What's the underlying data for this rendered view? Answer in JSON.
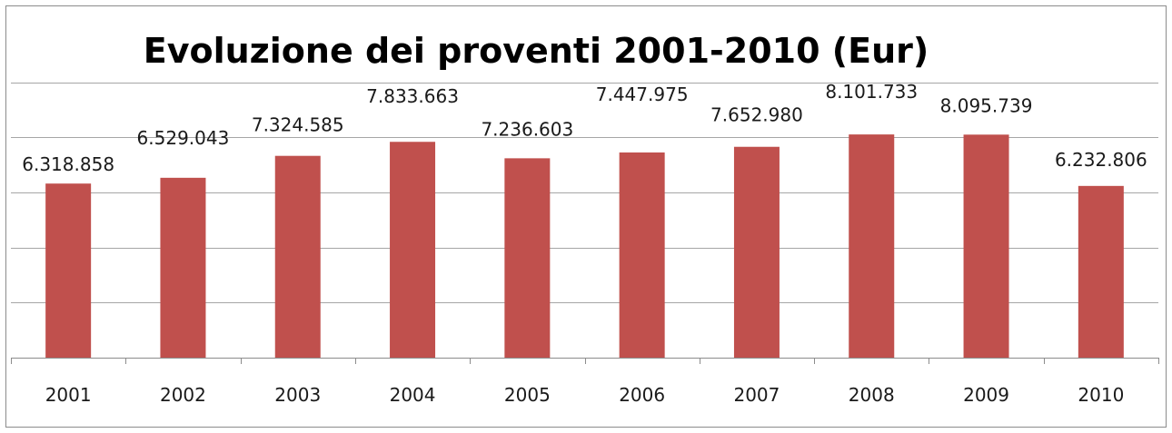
{
  "chart_data": {
    "type": "bar",
    "title": "Evoluzione dei proventi 2001-2010 (Eur)",
    "xlabel": "",
    "ylabel": "",
    "categories": [
      "2001",
      "2002",
      "2003",
      "2004",
      "2005",
      "2006",
      "2007",
      "2008",
      "2009",
      "2010"
    ],
    "values": [
      6318858,
      6529043,
      7324585,
      7833663,
      7236603,
      7447975,
      7652980,
      8101733,
      8095739,
      6232806
    ],
    "data_labels": [
      "6.318.858",
      "6.529.043",
      "7.324.585",
      "7.833.663",
      "7.236.603",
      "7.447.975",
      "7.652.980",
      "8.101.733",
      "8.095.739",
      "6.232.806"
    ],
    "ylim": [
      0,
      10000000
    ],
    "gridlines": [
      2000000,
      4000000,
      6000000,
      8000000,
      10000000
    ],
    "grid": true,
    "legend": "none",
    "bar_color": "#c0504d"
  }
}
